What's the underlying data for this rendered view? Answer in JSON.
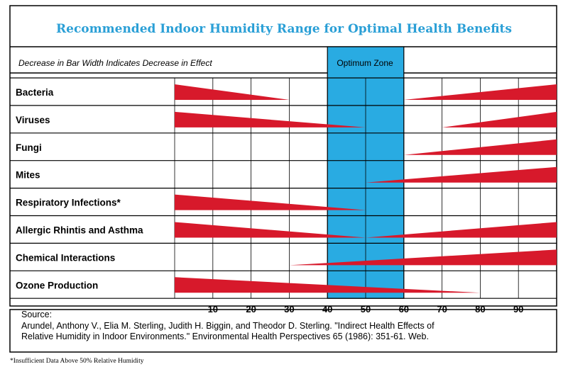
{
  "chart_data": {
    "type": "bar",
    "title": "Recommended Indoor Humidity Range for Optimal Health Benefits",
    "subtitle": "Decrease in Bar Width Indicates Decrease in Effect",
    "optimum_zone": {
      "label": "Optimum Zone",
      "range": [
        40,
        60
      ],
      "color": "#29abe2"
    },
    "x_ticks": [
      10,
      20,
      30,
      40,
      50,
      60,
      70,
      80,
      90
    ],
    "xlim": [
      0,
      100
    ],
    "bar_color": "#d7192b",
    "grid": true,
    "rows": [
      {
        "label": "Bacteria",
        "left_effect_until": 30,
        "right_effect_from": 60
      },
      {
        "label": "Viruses",
        "left_effect_until": 50,
        "right_effect_from": 70
      },
      {
        "label": "Fungi",
        "left_effect_until": null,
        "right_effect_from": 60
      },
      {
        "label": "Mites",
        "left_effect_until": null,
        "right_effect_from": 50
      },
      {
        "label": "Respiratory Infections*",
        "left_effect_until": 50,
        "right_effect_from": null
      },
      {
        "label": "Allergic Rhintis and Asthma",
        "left_effect_until": 50,
        "right_effect_from": 50
      },
      {
        "label": "Chemical Interactions",
        "left_effect_until": null,
        "right_effect_from": 30
      },
      {
        "label": "Ozone Production",
        "left_effect_until": 80,
        "right_effect_from": null
      }
    ]
  },
  "source": {
    "heading": "Source:",
    "line1": "Arundel, Anthony V., Elia M. Sterling, Judith H. Biggin, and Theodor D. Sterling. \"Indirect Health Effects of",
    "line2": "Relative Humidity in Indoor Environments.\" Environmental Health Perspectives 65 (1986): 351-61. Web."
  },
  "footnote": "*Insufficient Data Above 50% Relative Humidity"
}
